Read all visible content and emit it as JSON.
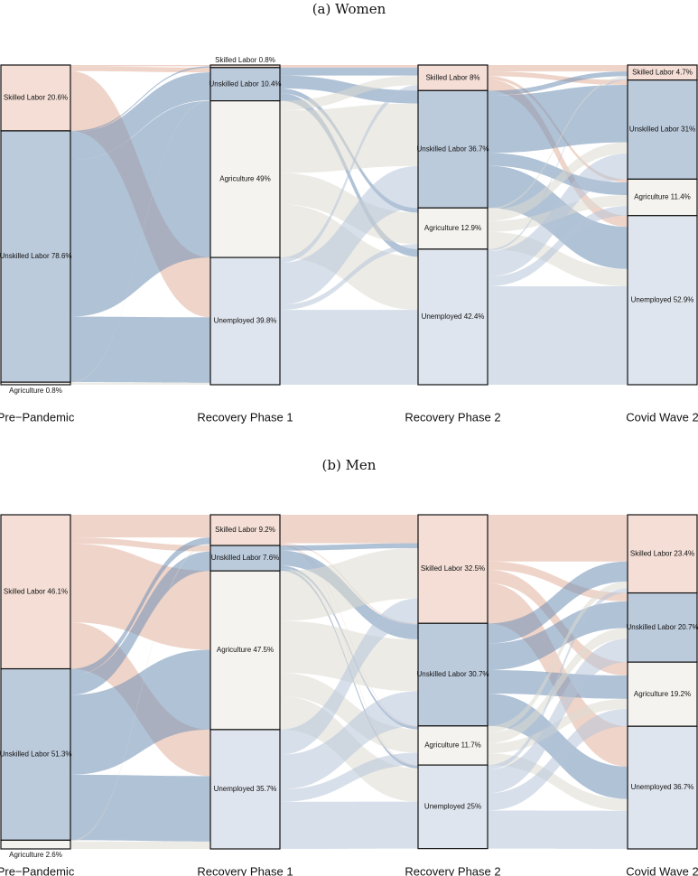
{
  "colors": {
    "skilled": "#e2b09c",
    "unskilled": "#6f8fb5",
    "agriculture": "#dcdbd2",
    "unemployed": "#b7c5d8",
    "node_skilled": "#f4ded6",
    "node_unskilled": "#bccbdc",
    "node_agriculture": "#f4f3ef",
    "node_unemployed": "#dfe5ee"
  },
  "stages": [
    "Pre−Pandemic",
    "Recovery Phase 1",
    "Recovery Phase 2",
    "Covid Wave 2"
  ],
  "categories": [
    "Skilled Labor",
    "Unskilled Labor",
    "Agriculture",
    "Unemployed"
  ],
  "chart_data": [
    {
      "type": "sankey",
      "title": "(a) Women",
      "nodes": [
        [
          {
            "category": "Skilled Labor",
            "label": "Skilled Labor 20.6%",
            "share": 20.6
          },
          {
            "category": "Unskilled Labor",
            "label": "Unskilled Labor 78.6%",
            "share": 78.6
          },
          {
            "category": "Agriculture",
            "label": "Agriculture 0.8%",
            "share": 0.8
          }
        ],
        [
          {
            "category": "Skilled Labor",
            "label": "Skilled Labor 0.8%",
            "share": 0.8
          },
          {
            "category": "Unskilled Labor",
            "label": "Unskilled Labor 10.4%",
            "share": 10.4
          },
          {
            "category": "Agriculture",
            "label": "Agriculture 49%",
            "share": 49
          },
          {
            "category": "Unemployed",
            "label": "Unemployed 39.8%",
            "share": 39.8
          }
        ],
        [
          {
            "category": "Skilled Labor",
            "label": "Skilled Labor 8%",
            "share": 8
          },
          {
            "category": "Unskilled Labor",
            "label": "Unskilled Labor 36.7%",
            "share": 36.7
          },
          {
            "category": "Agriculture",
            "label": "Agriculture 12.9%",
            "share": 12.9
          },
          {
            "category": "Unemployed",
            "label": "Unemployed 42.4%",
            "share": 42.4
          }
        ],
        [
          {
            "category": "Skilled Labor",
            "label": "Skilled Labor 4.7%",
            "share": 4.7
          },
          {
            "category": "Unskilled Labor",
            "label": "Unskilled Labor 31%",
            "share": 31
          },
          {
            "category": "Agriculture",
            "label": "Agriculture 11.4%",
            "share": 11.4
          },
          {
            "category": "Unemployed",
            "label": "Unemployed 52.9%",
            "share": 52.9
          }
        ]
      ],
      "flows": [
        [
          [
            0,
            0,
            0.4
          ],
          [
            0,
            1,
            1.5
          ],
          [
            0,
            3,
            18.7
          ],
          [
            1,
            0,
            0.4
          ],
          [
            1,
            1,
            8.7
          ],
          [
            1,
            2,
            49.0
          ],
          [
            1,
            3,
            20.5
          ],
          [
            2,
            1,
            0.2
          ],
          [
            2,
            3,
            0.6
          ]
        ],
        [
          [
            0,
            0,
            0.8
          ],
          [
            1,
            0,
            2.5
          ],
          [
            1,
            1,
            4.0
          ],
          [
            1,
            2,
            1.5
          ],
          [
            1,
            3,
            2.4
          ],
          [
            2,
            0,
            3.0
          ],
          [
            2,
            1,
            19.6
          ],
          [
            2,
            2,
            9.8
          ],
          [
            2,
            3,
            16.6
          ],
          [
            3,
            0,
            1.7
          ],
          [
            3,
            1,
            13.1
          ],
          [
            3,
            2,
            1.6
          ],
          [
            3,
            3,
            23.4
          ]
        ],
        [
          [
            0,
            0,
            2.0
          ],
          [
            0,
            1,
            1.5
          ],
          [
            0,
            2,
            1.0
          ],
          [
            0,
            3,
            3.5
          ],
          [
            1,
            0,
            1.5
          ],
          [
            1,
            1,
            18.0
          ],
          [
            1,
            2,
            4.0
          ],
          [
            1,
            3,
            13.2
          ],
          [
            2,
            0,
            0.6
          ],
          [
            2,
            1,
            3.5
          ],
          [
            2,
            2,
            3.4
          ],
          [
            2,
            3,
            5.4
          ],
          [
            3,
            0,
            0.6
          ],
          [
            3,
            1,
            8.0
          ],
          [
            3,
            2,
            3.0
          ],
          [
            3,
            3,
            30.8
          ]
        ]
      ]
    },
    {
      "type": "sankey",
      "title": "(b) Men",
      "nodes": [
        [
          {
            "category": "Skilled Labor",
            "label": "Skilled Labor 46.1%",
            "share": 46.1
          },
          {
            "category": "Unskilled Labor",
            "label": "Unskilled Labor 51.3%",
            "share": 51.3
          },
          {
            "category": "Agriculture",
            "label": "Agriculture 2.6%",
            "share": 2.6
          }
        ],
        [
          {
            "category": "Skilled Labor",
            "label": "Skilled Labor 9.2%",
            "share": 9.2
          },
          {
            "category": "Unskilled Labor",
            "label": "Unskilled Labor 7.6%",
            "share": 7.6
          },
          {
            "category": "Agriculture",
            "label": "Agriculture 47.5%",
            "share": 47.5
          },
          {
            "category": "Unemployed",
            "label": "Unemployed 35.7%",
            "share": 35.7
          }
        ],
        [
          {
            "category": "Skilled Labor",
            "label": "Skilled Labor 32.5%",
            "share": 32.5
          },
          {
            "category": "Unskilled Labor",
            "label": "Unskilled Labor 30.7%",
            "share": 30.7
          },
          {
            "category": "Agriculture",
            "label": "Agriculture 11.7%",
            "share": 11.7
          },
          {
            "category": "Unemployed",
            "label": "Unemployed 25%",
            "share": 25
          }
        ],
        [
          {
            "category": "Skilled Labor",
            "label": "Skilled Labor 23.4%",
            "share": 23.4
          },
          {
            "category": "Unskilled Labor",
            "label": "Unskilled Labor 20.7%",
            "share": 20.7
          },
          {
            "category": "Agriculture",
            "label": "Agriculture 19.2%",
            "share": 19.2
          },
          {
            "category": "Unemployed",
            "label": "Unemployed 36.7%",
            "share": 36.7
          }
        ]
      ],
      "flows": [
        [
          [
            0,
            0,
            6.8
          ],
          [
            0,
            1,
            1.8
          ],
          [
            0,
            2,
            23.6
          ],
          [
            0,
            3,
            13.9
          ],
          [
            1,
            0,
            2.0
          ],
          [
            1,
            1,
            5.8
          ],
          [
            1,
            2,
            23.9
          ],
          [
            1,
            3,
            19.6
          ],
          [
            2,
            0,
            0.4
          ],
          [
            2,
            3,
            2.2
          ]
        ],
        [
          [
            0,
            0,
            8.5
          ],
          [
            0,
            1,
            0.3
          ],
          [
            0,
            2,
            0.2
          ],
          [
            0,
            3,
            0.2
          ],
          [
            1,
            0,
            1.5
          ],
          [
            1,
            1,
            4.5
          ],
          [
            1,
            2,
            0.8
          ],
          [
            1,
            3,
            0.8
          ],
          [
            2,
            0,
            15.0
          ],
          [
            2,
            1,
            15.5
          ],
          [
            2,
            2,
            7.0
          ],
          [
            2,
            3,
            10.0
          ],
          [
            3,
            0,
            7.5
          ],
          [
            3,
            1,
            10.4
          ],
          [
            3,
            2,
            3.7
          ],
          [
            3,
            3,
            14.1
          ]
        ],
        [
          [
            0,
            0,
            14.0
          ],
          [
            0,
            1,
            2.5
          ],
          [
            0,
            2,
            4.0
          ],
          [
            0,
            3,
            12.0
          ],
          [
            1,
            0,
            6.0
          ],
          [
            1,
            1,
            8.0
          ],
          [
            1,
            2,
            7.0
          ],
          [
            1,
            3,
            9.7
          ],
          [
            2,
            0,
            2.0
          ],
          [
            2,
            1,
            3.2
          ],
          [
            2,
            2,
            3.0
          ],
          [
            2,
            3,
            3.5
          ],
          [
            3,
            0,
            1.4
          ],
          [
            3,
            1,
            7.0
          ],
          [
            3,
            2,
            5.2
          ],
          [
            3,
            3,
            11.4
          ]
        ]
      ]
    }
  ]
}
